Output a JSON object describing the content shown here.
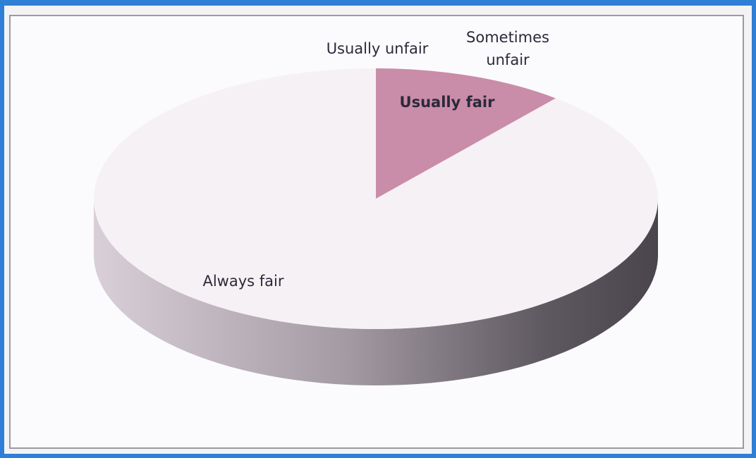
{
  "chart_data": {
    "type": "pie",
    "categories": [
      "Usually unfair",
      "Sometimes unfair",
      "Usually fair",
      "Always fair"
    ],
    "values": [
      0,
      0,
      11,
      89
    ],
    "colors": [
      "#b07f98",
      "#d9b6c6",
      "#c98ca9",
      "#f6f1f4"
    ]
  }
}
